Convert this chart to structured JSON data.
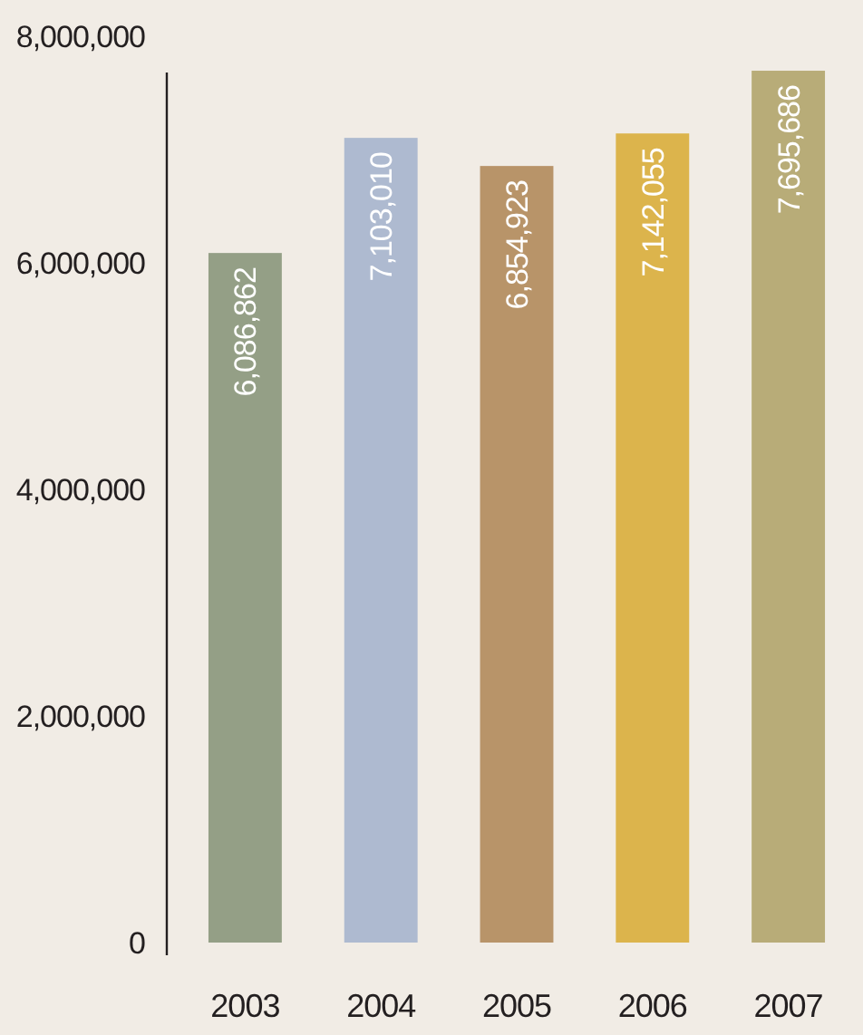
{
  "chart_data": {
    "type": "bar",
    "categories": [
      "2003",
      "2004",
      "2005",
      "2006",
      "2007"
    ],
    "values": [
      6086862,
      7103010,
      6854923,
      7142055,
      7695686
    ],
    "colors": [
      "#949f86",
      "#aebad0",
      "#b89469",
      "#dcb44c",
      "#b8ac78"
    ],
    "ylim": [
      0,
      8000000
    ],
    "yticks": [
      {
        "value": 0,
        "label": "0"
      },
      {
        "value": 2000000,
        "label": "2,000,000"
      },
      {
        "value": 4000000,
        "label": "4,000,000"
      },
      {
        "value": 6000000,
        "label": "6,000,000"
      },
      {
        "value": 8000000,
        "label": "8,000,000"
      }
    ],
    "value_labels": [
      "6,086,862",
      "7,103,010",
      "6,854,923",
      "7,142,055",
      "7,695,686"
    ],
    "grid": false
  }
}
